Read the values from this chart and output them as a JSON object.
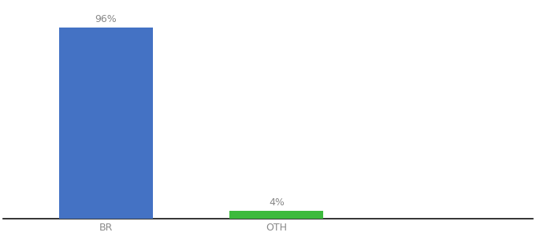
{
  "categories": [
    "BR",
    "OTH"
  ],
  "values": [
    96,
    4
  ],
  "bar_colors": [
    "#4472c4",
    "#3dba3d"
  ],
  "label_texts": [
    "96%",
    "4%"
  ],
  "background_color": "#ffffff",
  "text_color": "#888888",
  "ylim": [
    0,
    108
  ],
  "bar_width": 0.55,
  "figsize": [
    6.8,
    3.0
  ],
  "dpi": 100,
  "spine_color": "#111111",
  "tick_label_fontsize": 9,
  "bar_label_fontsize": 9,
  "xlim": [
    -0.6,
    2.5
  ]
}
